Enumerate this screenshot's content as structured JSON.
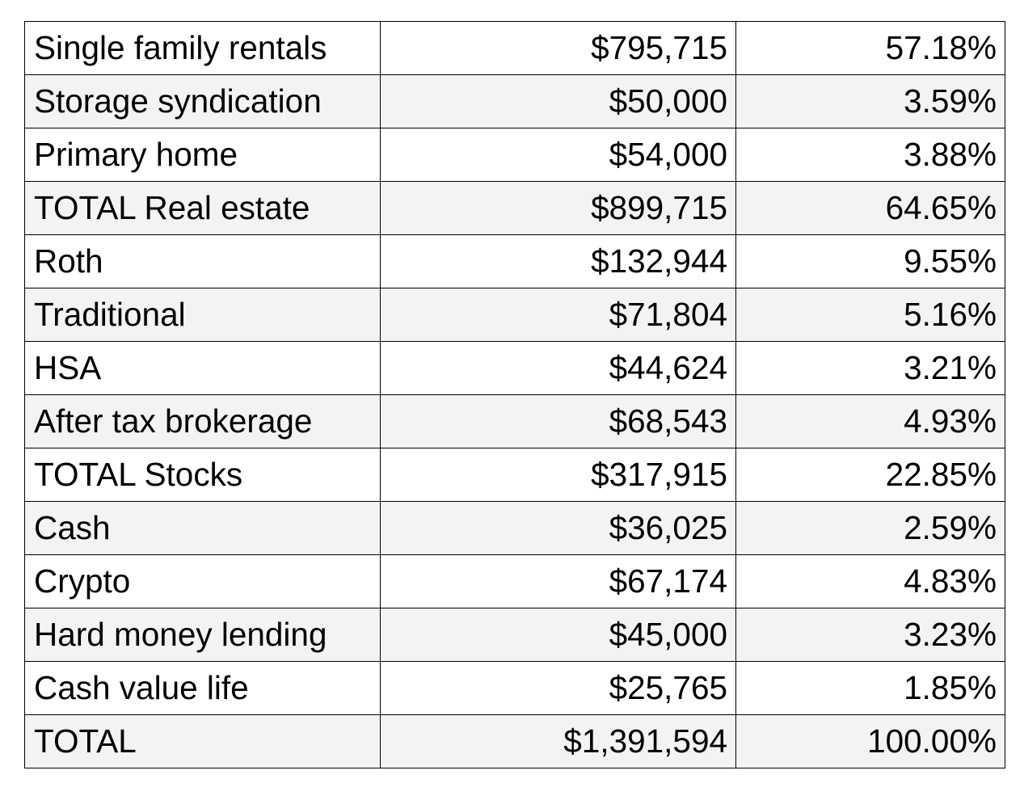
{
  "table": {
    "rows": [
      {
        "label": "Single family rentals",
        "amount": "$795,715",
        "percent": "57.18%"
      },
      {
        "label": "Storage syndication",
        "amount": "$50,000",
        "percent": "3.59%"
      },
      {
        "label": "Primary home",
        "amount": "$54,000",
        "percent": "3.88%"
      },
      {
        "label": "TOTAL Real estate",
        "amount": "$899,715",
        "percent": "64.65%"
      },
      {
        "label": "Roth",
        "amount": "$132,944",
        "percent": "9.55%"
      },
      {
        "label": "Traditional",
        "amount": "$71,804",
        "percent": "5.16%"
      },
      {
        "label": "HSA",
        "amount": "$44,624",
        "percent": "3.21%"
      },
      {
        "label": "After tax brokerage",
        "amount": "$68,543",
        "percent": "4.93%"
      },
      {
        "label": "TOTAL Stocks",
        "amount": "$317,915",
        "percent": "22.85%"
      },
      {
        "label": "Cash",
        "amount": "$36,025",
        "percent": "2.59%"
      },
      {
        "label": "Crypto",
        "amount": "$67,174",
        "percent": "4.83%"
      },
      {
        "label": "Hard money lending",
        "amount": "$45,000",
        "percent": "3.23%"
      },
      {
        "label": "Cash value life",
        "amount": "$25,765",
        "percent": "1.85%"
      },
      {
        "label": "TOTAL",
        "amount": "$1,391,594",
        "percent": "100.00%"
      }
    ]
  },
  "colors": {
    "border": "#000000",
    "row_alt_background": "#f3f3f3",
    "row_background": "#ffffff",
    "text": "#000000"
  }
}
